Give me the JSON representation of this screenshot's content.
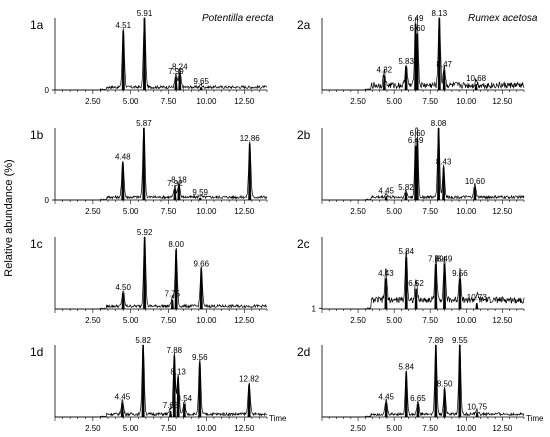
{
  "figure": {
    "ylabel": "Relative abundance (%)",
    "xlabel": "Time",
    "species_left": "Potentilla erecta",
    "species_right": "Rumex acetosa"
  },
  "chart_data": [
    {
      "type": "line",
      "panel": "1a",
      "xlim": [
        0,
        14
      ],
      "ylim": [
        0,
        100
      ],
      "y_ticks": [
        0
      ],
      "x_ticks": [
        "2.50",
        "5.00",
        "7.50",
        "10.00",
        "12.50"
      ],
      "peaks": [
        {
          "x": 4.51,
          "y": 82,
          "label": "4.51"
        },
        {
          "x": 5.91,
          "y": 100,
          "label": "5.91"
        },
        {
          "x": 7.99,
          "y": 18,
          "label": "7.99"
        },
        {
          "x": 8.24,
          "y": 24,
          "label": "8.24"
        },
        {
          "x": 9.65,
          "y": 4,
          "label": "9.65"
        }
      ]
    },
    {
      "type": "line",
      "panel": "1b",
      "xlim": [
        0,
        14
      ],
      "ylim": [
        0,
        100
      ],
      "y_ticks": [
        0
      ],
      "x_ticks": [
        "2.50",
        "5.00",
        "7.50",
        "10.00",
        "12.50"
      ],
      "peaks": [
        {
          "x": 4.48,
          "y": 52,
          "label": "4.48"
        },
        {
          "x": 5.87,
          "y": 100,
          "label": "5.87"
        },
        {
          "x": 7.92,
          "y": 15,
          "label": "7.92"
        },
        {
          "x": 8.18,
          "y": 20,
          "label": "8.18"
        },
        {
          "x": 9.59,
          "y": 3,
          "label": "9.59"
        },
        {
          "x": 12.86,
          "y": 78,
          "label": "12.86"
        }
      ]
    },
    {
      "type": "line",
      "panel": "1c",
      "xlim": [
        0,
        14
      ],
      "ylim": [
        0,
        100
      ],
      "y_ticks": [],
      "x_ticks": [
        "2.50",
        "5.00",
        "7.50",
        "10.00",
        "12.50"
      ],
      "peaks": [
        {
          "x": 4.5,
          "y": 22,
          "label": "4.50"
        },
        {
          "x": 5.92,
          "y": 100,
          "label": "5.92"
        },
        {
          "x": 7.75,
          "y": 13,
          "label": "7.75"
        },
        {
          "x": 8.0,
          "y": 82,
          "label": "8.00"
        },
        {
          "x": 9.66,
          "y": 55,
          "label": "9.66"
        }
      ]
    },
    {
      "type": "line",
      "panel": "1d",
      "xlim": [
        0,
        14
      ],
      "ylim": [
        0,
        100
      ],
      "y_ticks": [],
      "x_ticks": [
        "2.50",
        "5.00",
        "7.50",
        "10.00",
        "12.50"
      ],
      "peaks": [
        {
          "x": 4.45,
          "y": 20,
          "label": "4.45"
        },
        {
          "x": 5.82,
          "y": 100,
          "label": "5.82"
        },
        {
          "x": 7.63,
          "y": 8,
          "label": "7.63"
        },
        {
          "x": 7.88,
          "y": 85,
          "label": "7.88"
        },
        {
          "x": 8.13,
          "y": 55,
          "label": "8.13"
        },
        {
          "x": 8.54,
          "y": 18,
          "label": "8.54"
        },
        {
          "x": 9.56,
          "y": 75,
          "label": "9.56"
        },
        {
          "x": 12.82,
          "y": 45,
          "label": "12.82"
        }
      ]
    },
    {
      "type": "line",
      "panel": "2a",
      "xlim": [
        0,
        14
      ],
      "ylim": [
        0,
        100
      ],
      "y_ticks": [],
      "x_ticks": [
        "2.50",
        "5.00",
        "7.50",
        "10.00",
        "12.50"
      ],
      "peaks": [
        {
          "x": 4.32,
          "y": 20,
          "label": "4.32"
        },
        {
          "x": 5.83,
          "y": 32,
          "label": "5.83"
        },
        {
          "x": 6.49,
          "y": 92,
          "label": "6.49"
        },
        {
          "x": 6.6,
          "y": 78,
          "label": "6.60"
        },
        {
          "x": 8.13,
          "y": 100,
          "label": "8.13"
        },
        {
          "x": 8.47,
          "y": 28,
          "label": "8.47"
        },
        {
          "x": 10.68,
          "y": 8,
          "label": "10.68"
        }
      ]
    },
    {
      "type": "line",
      "panel": "2b",
      "xlim": [
        0,
        14
      ],
      "ylim": [
        0,
        100
      ],
      "y_ticks": [],
      "x_ticks": [
        "2.50",
        "5.00",
        "7.50",
        "10.00",
        "12.50"
      ],
      "peaks": [
        {
          "x": 4.45,
          "y": 5,
          "label": "4.45"
        },
        {
          "x": 5.82,
          "y": 10,
          "label": "5.82"
        },
        {
          "x": 6.49,
          "y": 75,
          "label": "6.49"
        },
        {
          "x": 6.6,
          "y": 85,
          "label": "6.60"
        },
        {
          "x": 8.08,
          "y": 100,
          "label": "8.08"
        },
        {
          "x": 8.43,
          "y": 45,
          "label": "8.43"
        },
        {
          "x": 10.6,
          "y": 18,
          "label": "10.60"
        }
      ]
    },
    {
      "type": "line",
      "panel": "2c",
      "xlim": [
        0,
        14
      ],
      "ylim": [
        0,
        100
      ],
      "y_ticks": [
        1
      ],
      "x_ticks": [
        "2.50",
        "5.00",
        "7.50",
        "10.00",
        "12.50"
      ],
      "peaks": [
        {
          "x": 4.43,
          "y": 42,
          "label": "4.43"
        },
        {
          "x": 5.84,
          "y": 72,
          "label": "5.84"
        },
        {
          "x": 6.52,
          "y": 28,
          "label": "6.52"
        },
        {
          "x": 7.89,
          "y": 62,
          "label": "7.89"
        },
        {
          "x": 8.49,
          "y": 62,
          "label": "8.49"
        },
        {
          "x": 9.56,
          "y": 42,
          "label": "9.56"
        },
        {
          "x": 10.73,
          "y": 8,
          "label": "10.73"
        }
      ]
    },
    {
      "type": "line",
      "panel": "2d",
      "xlim": [
        0,
        14
      ],
      "ylim": [
        0,
        100
      ],
      "y_ticks": [],
      "x_ticks": [
        "2.50",
        "5.00",
        "7.50",
        "10.00",
        "12.50"
      ],
      "peaks": [
        {
          "x": 4.45,
          "y": 20,
          "label": "4.45"
        },
        {
          "x": 5.84,
          "y": 62,
          "label": "5.84"
        },
        {
          "x": 6.65,
          "y": 18,
          "label": "6.65"
        },
        {
          "x": 7.89,
          "y": 100,
          "label": "7.89"
        },
        {
          "x": 8.5,
          "y": 38,
          "label": "8.50"
        },
        {
          "x": 9.55,
          "y": 100,
          "label": "9.55"
        },
        {
          "x": 10.75,
          "y": 6,
          "label": "10.75"
        }
      ]
    }
  ]
}
